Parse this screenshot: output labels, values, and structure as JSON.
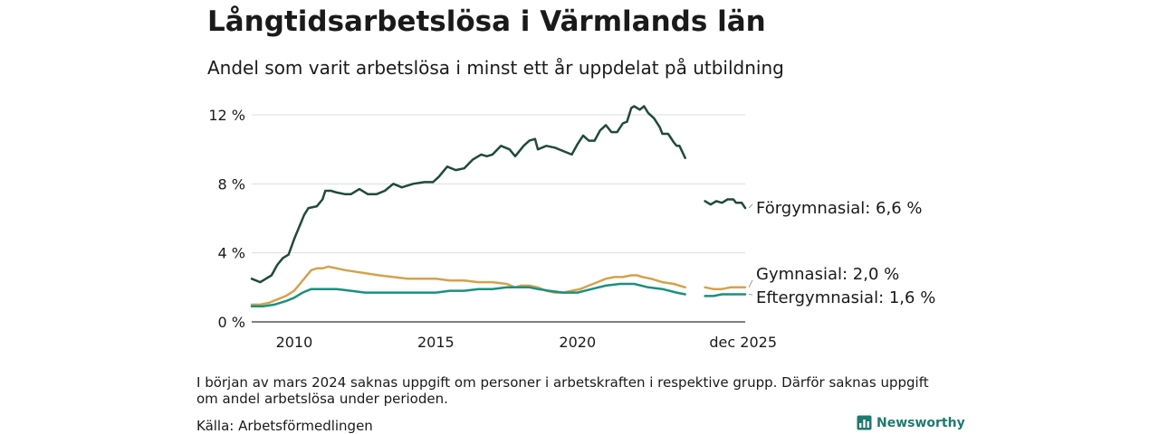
{
  "header": {
    "title": "Långtidsarbetslösa i Värmlands län",
    "subtitle": "Andel som varit arbetslösa i minst ett år uppdelat på utbildning"
  },
  "footer": {
    "note": "I början av mars 2024 saknas uppgift om personer i arbetskraften i respektive grupp. Därför saknas uppgift om andel arbetslösa under perioden.",
    "source": "Källa: Arbetsförmedlingen",
    "brand": "Newsworthy"
  },
  "colors": {
    "forgymnasial": "#1f4a3c",
    "gymnasial": "#d4a24c",
    "eftergymnasial": "#1a9080",
    "grid": "#dddddd",
    "axis": "#333333",
    "brand": "#1f7a6e"
  },
  "chart_data": {
    "type": "line",
    "title": "Långtidsarbetslösa i Värmlands län",
    "subtitle": "Andel som varit arbetslösa i minst ett år uppdelat på utbildning",
    "xlabel": "",
    "ylabel": "",
    "xlim": [
      2008.5,
      2025.92
    ],
    "ylim": [
      0,
      12
    ],
    "y_ticks": [
      0,
      4,
      8,
      12
    ],
    "y_tick_labels": [
      "0 %",
      "4 %",
      "8 %",
      "12 %"
    ],
    "x_ticks": [
      2010,
      2015,
      2020,
      2025.92
    ],
    "x_tick_labels": [
      "2010",
      "2015",
      "2020",
      "dec 2025"
    ],
    "grid": true,
    "gap": [
      2024.2,
      2024.5
    ],
    "series": [
      {
        "name": "Förgymnasial",
        "end_label": "Förgymnasial: 6,6 %",
        "color": "#1f4a3c",
        "segments": [
          [
            [
              2008.5,
              2.5
            ],
            [
              2008.8,
              2.3
            ],
            [
              2009.0,
              2.5
            ],
            [
              2009.2,
              2.7
            ],
            [
              2009.4,
              3.3
            ],
            [
              2009.6,
              3.7
            ],
            [
              2009.8,
              3.9
            ],
            [
              2010.0,
              4.8
            ],
            [
              2010.2,
              5.6
            ],
            [
              2010.35,
              6.2
            ],
            [
              2010.5,
              6.6
            ],
            [
              2010.8,
              6.7
            ],
            [
              2011.0,
              7.1
            ],
            [
              2011.1,
              7.6
            ],
            [
              2011.3,
              7.6
            ],
            [
              2011.5,
              7.5
            ],
            [
              2011.8,
              7.4
            ],
            [
              2012.0,
              7.4
            ],
            [
              2012.3,
              7.7
            ],
            [
              2012.6,
              7.4
            ],
            [
              2012.9,
              7.4
            ],
            [
              2013.2,
              7.6
            ],
            [
              2013.5,
              8.0
            ],
            [
              2013.8,
              7.8
            ],
            [
              2014.2,
              8.0
            ],
            [
              2014.6,
              8.1
            ],
            [
              2014.9,
              8.1
            ],
            [
              2015.1,
              8.4
            ],
            [
              2015.4,
              9.0
            ],
            [
              2015.7,
              8.8
            ],
            [
              2016.0,
              8.9
            ],
            [
              2016.3,
              9.4
            ],
            [
              2016.6,
              9.7
            ],
            [
              2016.8,
              9.6
            ],
            [
              2017.0,
              9.7
            ],
            [
              2017.3,
              10.2
            ],
            [
              2017.6,
              10.0
            ],
            [
              2017.8,
              9.6
            ],
            [
              2018.1,
              10.2
            ],
            [
              2018.3,
              10.5
            ],
            [
              2018.5,
              10.6
            ],
            [
              2018.6,
              10.0
            ],
            [
              2018.9,
              10.2
            ],
            [
              2019.2,
              10.1
            ],
            [
              2019.5,
              9.9
            ],
            [
              2019.8,
              9.7
            ],
            [
              2020.0,
              10.3
            ],
            [
              2020.2,
              10.8
            ],
            [
              2020.4,
              10.5
            ],
            [
              2020.6,
              10.5
            ],
            [
              2020.8,
              11.1
            ],
            [
              2021.0,
              11.4
            ],
            [
              2021.2,
              11.0
            ],
            [
              2021.4,
              11.0
            ],
            [
              2021.6,
              11.5
            ],
            [
              2021.75,
              11.6
            ],
            [
              2021.9,
              12.4
            ],
            [
              2022.0,
              12.5
            ],
            [
              2022.2,
              12.3
            ],
            [
              2022.35,
              12.5
            ],
            [
              2022.5,
              12.1
            ],
            [
              2022.7,
              11.8
            ],
            [
              2022.9,
              11.3
            ],
            [
              2023.0,
              10.9
            ],
            [
              2023.2,
              10.9
            ],
            [
              2023.4,
              10.4
            ],
            [
              2023.5,
              10.2
            ],
            [
              2023.6,
              10.2
            ],
            [
              2023.8,
              9.5
            ]
          ],
          [
            [
              2024.5,
              7.0
            ],
            [
              2024.7,
              6.8
            ],
            [
              2024.9,
              7.0
            ],
            [
              2025.1,
              6.9
            ],
            [
              2025.3,
              7.1
            ],
            [
              2025.5,
              7.1
            ],
            [
              2025.6,
              6.9
            ],
            [
              2025.8,
              6.9
            ],
            [
              2025.92,
              6.6
            ]
          ]
        ]
      },
      {
        "name": "Gymnasial",
        "end_label": "Gymnasial: 2,0 %",
        "color": "#d4a24c",
        "segments": [
          [
            [
              2008.5,
              1.0
            ],
            [
              2008.8,
              1.0
            ],
            [
              2009.1,
              1.1
            ],
            [
              2009.4,
              1.3
            ],
            [
              2009.7,
              1.5
            ],
            [
              2010.0,
              1.8
            ],
            [
              2010.2,
              2.2
            ],
            [
              2010.4,
              2.6
            ],
            [
              2010.6,
              3.0
            ],
            [
              2010.8,
              3.1
            ],
            [
              2011.0,
              3.1
            ],
            [
              2011.2,
              3.2
            ],
            [
              2011.5,
              3.1
            ],
            [
              2011.8,
              3.0
            ],
            [
              2012.2,
              2.9
            ],
            [
              2012.6,
              2.8
            ],
            [
              2013.0,
              2.7
            ],
            [
              2013.5,
              2.6
            ],
            [
              2014.0,
              2.5
            ],
            [
              2014.5,
              2.5
            ],
            [
              2015.0,
              2.5
            ],
            [
              2015.5,
              2.4
            ],
            [
              2016.0,
              2.4
            ],
            [
              2016.5,
              2.3
            ],
            [
              2017.0,
              2.3
            ],
            [
              2017.5,
              2.2
            ],
            [
              2017.8,
              2.0
            ],
            [
              2018.0,
              2.1
            ],
            [
              2018.3,
              2.1
            ],
            [
              2018.6,
              2.0
            ],
            [
              2018.9,
              1.8
            ],
            [
              2019.2,
              1.7
            ],
            [
              2019.5,
              1.7
            ],
            [
              2019.8,
              1.8
            ],
            [
              2020.1,
              1.9
            ],
            [
              2020.4,
              2.1
            ],
            [
              2020.7,
              2.3
            ],
            [
              2021.0,
              2.5
            ],
            [
              2021.3,
              2.6
            ],
            [
              2021.6,
              2.6
            ],
            [
              2021.9,
              2.7
            ],
            [
              2022.1,
              2.7
            ],
            [
              2022.3,
              2.6
            ],
            [
              2022.6,
              2.5
            ],
            [
              2023.0,
              2.3
            ],
            [
              2023.4,
              2.2
            ],
            [
              2023.8,
              2.0
            ]
          ],
          [
            [
              2024.5,
              2.0
            ],
            [
              2024.8,
              1.9
            ],
            [
              2025.1,
              1.9
            ],
            [
              2025.4,
              2.0
            ],
            [
              2025.7,
              2.0
            ],
            [
              2025.92,
              2.0
            ]
          ]
        ]
      },
      {
        "name": "Eftergymnasial",
        "end_label": "Eftergymnasial: 1,6 %",
        "color": "#1a9080",
        "segments": [
          [
            [
              2008.5,
              0.9
            ],
            [
              2008.9,
              0.9
            ],
            [
              2009.3,
              1.0
            ],
            [
              2009.7,
              1.2
            ],
            [
              2010.0,
              1.4
            ],
            [
              2010.3,
              1.7
            ],
            [
              2010.6,
              1.9
            ],
            [
              2011.0,
              1.9
            ],
            [
              2011.5,
              1.9
            ],
            [
              2012.0,
              1.8
            ],
            [
              2012.5,
              1.7
            ],
            [
              2013.0,
              1.7
            ],
            [
              2013.5,
              1.7
            ],
            [
              2014.0,
              1.7
            ],
            [
              2014.5,
              1.7
            ],
            [
              2015.0,
              1.7
            ],
            [
              2015.5,
              1.8
            ],
            [
              2016.0,
              1.8
            ],
            [
              2016.5,
              1.9
            ],
            [
              2017.0,
              1.9
            ],
            [
              2017.5,
              2.0
            ],
            [
              2018.0,
              2.0
            ],
            [
              2018.3,
              2.0
            ],
            [
              2018.6,
              1.9
            ],
            [
              2019.0,
              1.8
            ],
            [
              2019.5,
              1.7
            ],
            [
              2020.0,
              1.7
            ],
            [
              2020.5,
              1.9
            ],
            [
              2021.0,
              2.1
            ],
            [
              2021.5,
              2.2
            ],
            [
              2022.0,
              2.2
            ],
            [
              2022.5,
              2.0
            ],
            [
              2023.0,
              1.9
            ],
            [
              2023.5,
              1.7
            ],
            [
              2023.8,
              1.6
            ]
          ],
          [
            [
              2024.5,
              1.5
            ],
            [
              2024.8,
              1.5
            ],
            [
              2025.1,
              1.6
            ],
            [
              2025.4,
              1.6
            ],
            [
              2025.7,
              1.6
            ],
            [
              2025.92,
              1.6
            ]
          ]
        ]
      }
    ]
  }
}
